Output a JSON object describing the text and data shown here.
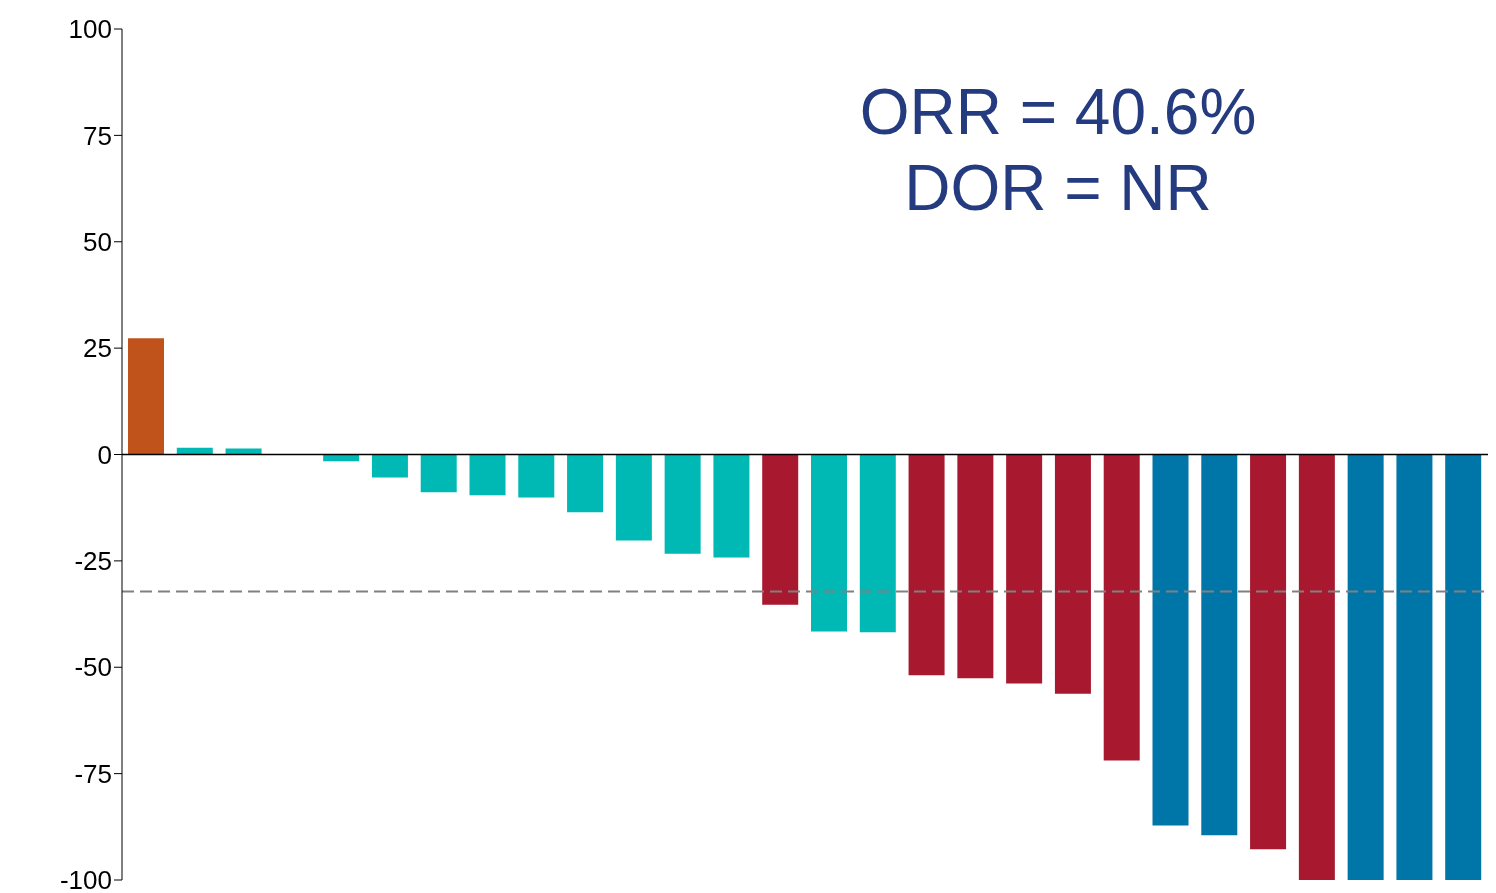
{
  "chart_data": {
    "type": "bar",
    "categories": [
      null,
      null,
      null,
      null,
      null,
      null,
      null,
      null,
      null,
      null,
      null,
      null,
      null,
      null,
      null,
      null,
      null,
      null,
      null,
      null,
      null,
      null,
      null,
      null,
      null,
      null,
      null,
      null
    ],
    "values": [
      27.3,
      1.6,
      1.4,
      0,
      -1.6,
      -5.4,
      -8.9,
      -9.6,
      -10.1,
      -13.6,
      -20.2,
      -23.3,
      -24.2,
      -35.3,
      -41.6,
      -41.8,
      -51.9,
      -52.6,
      -53.8,
      -56.2,
      -71.9,
      -87.2,
      -89.5,
      -92.8,
      -100,
      -100,
      -100,
      -100
    ],
    "colors": [
      "#c0521b",
      "#00b8b4",
      "#00b8b4",
      "#00b8b4",
      "#00b8b4",
      "#00b8b4",
      "#00b8b4",
      "#00b8b4",
      "#00b8b4",
      "#00b8b4",
      "#00b8b4",
      "#00b8b4",
      "#00b8b4",
      "#a8182e",
      "#00b8b4",
      "#00b8b4",
      "#a8182e",
      "#a8182e",
      "#a8182e",
      "#a8182e",
      "#a8182e",
      "#0075a8",
      "#0075a8",
      "#a8182e",
      "#a8182e",
      "#0075a8",
      "#0075a8",
      "#0075a8"
    ],
    "ylim": [
      -100,
      100
    ],
    "yticks": [
      -100,
      -75,
      -50,
      -25,
      0,
      25,
      50,
      75,
      100
    ],
    "ref_lines": [
      {
        "axis": "y",
        "value": -32.2,
        "color": "#808080",
        "line_style": "dashed"
      }
    ],
    "annotations": [
      "ORR = 40.6%",
      "DOR = NR"
    ]
  }
}
